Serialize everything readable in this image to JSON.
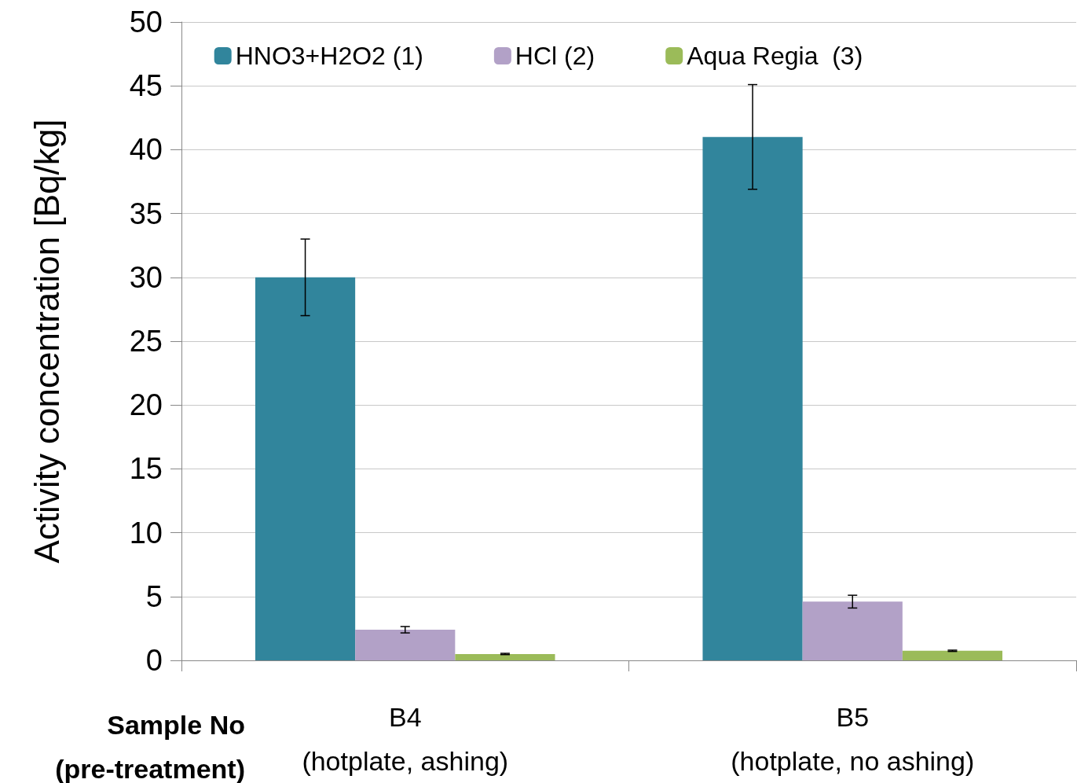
{
  "chart_data": {
    "type": "bar",
    "ylabel": "Activity concentration [Bq/kg]",
    "xlabel": "Sample No\n(pre-treatment)",
    "categories": [
      "B4\n(hotplate, ashing)",
      "B5\n(hotplate, no ashing)"
    ],
    "series": [
      {
        "name": "HNO3+H2O2 (1)",
        "color": "#31859c",
        "values": [
          30,
          41
        ],
        "errors": [
          3,
          4.1
        ]
      },
      {
        "name": "HCl (2)",
        "color": "#b2a1c7",
        "values": [
          2.4,
          4.6
        ],
        "errors": [
          0.25,
          0.5
        ]
      },
      {
        "name": "Aqua Regia  (3)",
        "color": "#9bbb59",
        "values": [
          0.5,
          0.75
        ],
        "errors": [
          0.05,
          0.05
        ]
      }
    ],
    "ylim": [
      0,
      50
    ],
    "yticks": [
      0,
      5,
      10,
      15,
      20,
      25,
      30,
      35,
      40,
      45,
      50
    ],
    "grid": "y",
    "legend": "top"
  }
}
